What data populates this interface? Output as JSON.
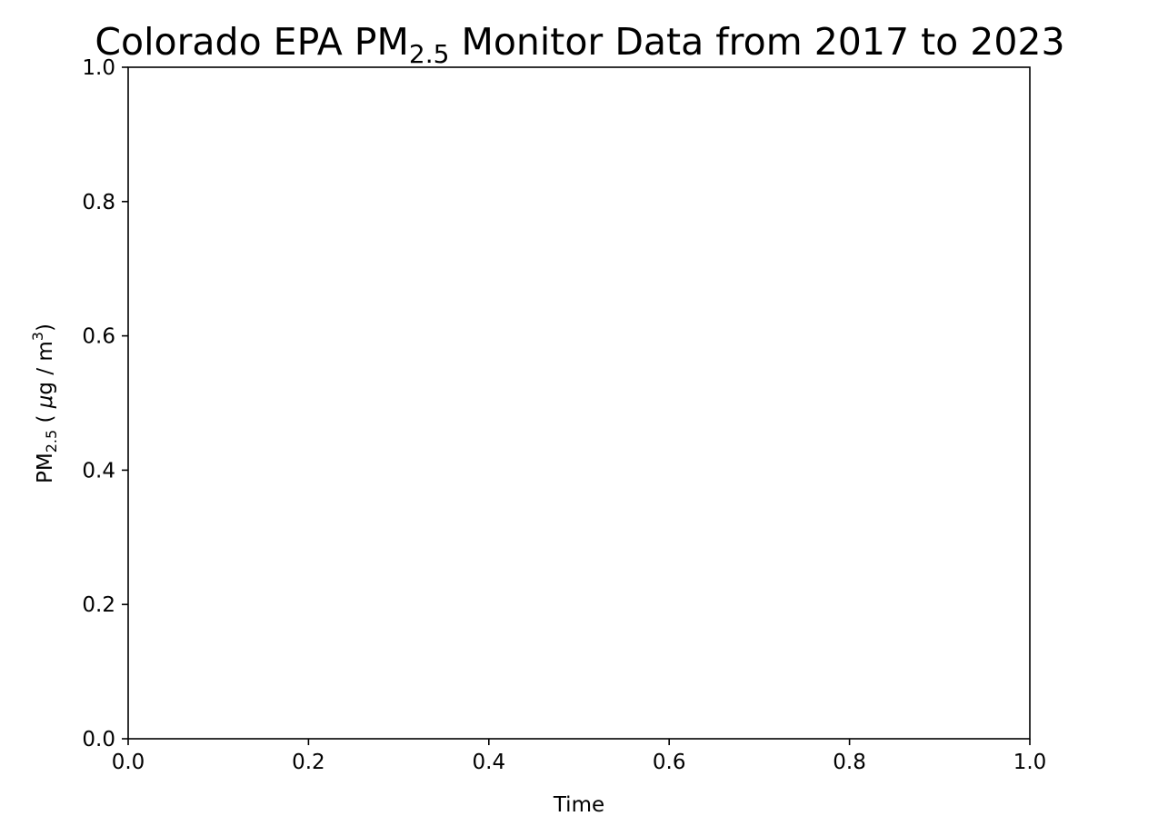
{
  "chart_data": {
    "type": "line",
    "title": {
      "prefix": "Colorado EPA PM",
      "subscript": "2.5",
      "suffix": " Monitor Data from 2017 to 2023"
    },
    "xlabel": "Time",
    "ylabel": {
      "prefix": "PM",
      "subscript": "2.5",
      "middle": " ( ",
      "mu": "μ",
      "unit": "g / m",
      "superscript": "3",
      "suffix": ")"
    },
    "xlim": [
      0.0,
      1.0
    ],
    "ylim": [
      0.0,
      1.0
    ],
    "x_ticks": [
      0.0,
      0.2,
      0.4,
      0.6,
      0.8,
      1.0
    ],
    "y_ticks": [
      0.0,
      0.2,
      0.4,
      0.6,
      0.8,
      1.0
    ],
    "x_tick_labels": [
      "0.0",
      "0.2",
      "0.4",
      "0.6",
      "0.8",
      "1.0"
    ],
    "y_tick_labels": [
      "0.0",
      "0.2",
      "0.4",
      "0.6",
      "0.8",
      "1.0"
    ],
    "series": [],
    "grid": false,
    "colors": {
      "axes": "#000000",
      "background": "#ffffff",
      "text": "#000000"
    }
  }
}
